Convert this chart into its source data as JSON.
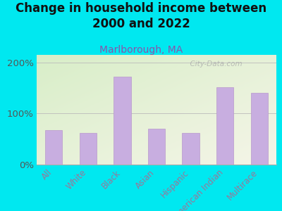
{
  "title": "Change in household income between\n2000 and 2022",
  "subtitle": "Marlborough, MA",
  "categories": [
    "All",
    "White",
    "Black",
    "Asian",
    "Hispanic",
    "American Indian",
    "Multirace"
  ],
  "values": [
    68,
    62,
    172,
    70,
    62,
    152,
    140
  ],
  "bar_color": "#c8aee0",
  "bar_edge_color": "#b898cc",
  "title_fontsize": 12,
  "subtitle_fontsize": 10,
  "subtitle_color": "#8855aa",
  "background_outer": "#00e8f0",
  "ylabel_ticks": [
    0,
    100,
    200
  ],
  "ylabel_labels": [
    "0%",
    "100%",
    "200%"
  ],
  "ylim": [
    0,
    215
  ],
  "grid_color": "#bbbbbb",
  "watermark": "  City-Data.com",
  "tick_label_color": "#997799",
  "ytick_color": "#555555",
  "axis_label_fontsize": 8.5
}
